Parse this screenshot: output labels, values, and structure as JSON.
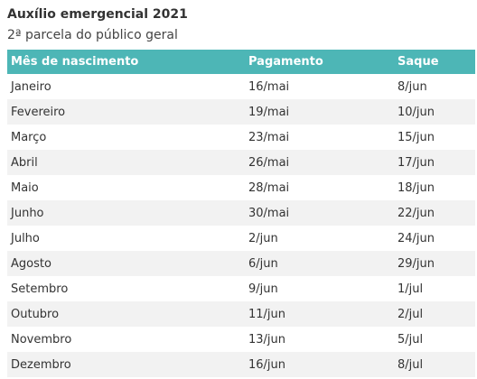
{
  "header": {
    "title": "Auxílio emergencial 2021",
    "subtitle": "2ª parcela do público geral"
  },
  "table": {
    "columns": [
      "Mês de nascimento",
      "Pagamento",
      "Saque"
    ],
    "rows": [
      [
        "Janeiro",
        "16/mai",
        "8/jun"
      ],
      [
        "Fevereiro",
        "19/mai",
        "10/jun"
      ],
      [
        "Março",
        "23/mai",
        "15/jun"
      ],
      [
        "Abril",
        "26/mai",
        "17/jun"
      ],
      [
        "Maio",
        "28/mai",
        "18/jun"
      ],
      [
        "Junho",
        "30/mai",
        "22/jun"
      ],
      [
        "Julho",
        "2/jun",
        "24/jun"
      ],
      [
        "Agosto",
        "6/jun",
        "29/jun"
      ],
      [
        "Setembro",
        "9/jun",
        "1/jul"
      ],
      [
        "Outubro",
        "11/jun",
        "2/jul"
      ],
      [
        "Novembro",
        "13/jun",
        "5/jul"
      ],
      [
        "Dezembro",
        "16/jun",
        "8/jul"
      ]
    ]
  }
}
